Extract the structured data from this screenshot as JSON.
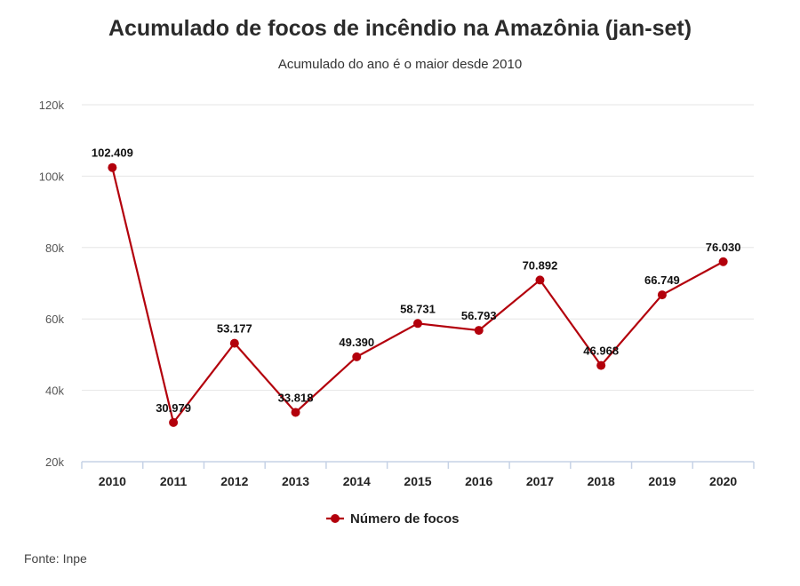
{
  "header": {
    "title": "Acumulado de focos de incêndio na Amazônia (jan-set)",
    "subtitle": "Acumulado do ano é o maior desde 2010"
  },
  "footer": {
    "source": "Fonte: Inpe"
  },
  "colors": {
    "series": "#b3000c",
    "grid": "#e6e6e6",
    "axis": "#c6d2e6"
  },
  "chart_data": {
    "type": "line",
    "title": "Acumulado de focos de incêndio na Amazônia (jan-set)",
    "subtitle": "Acumulado do ano é o maior desde 2010",
    "xlabel": "",
    "ylabel": "",
    "categories": [
      "2010",
      "2011",
      "2012",
      "2013",
      "2014",
      "2015",
      "2016",
      "2017",
      "2018",
      "2019",
      "2020"
    ],
    "series": [
      {
        "name": "Número de focos",
        "values": [
          102409,
          30979,
          53177,
          33818,
          49390,
          58731,
          56793,
          70892,
          46968,
          66749,
          76030
        ],
        "labels": [
          "102.409",
          "30.979",
          "53.177",
          "33.818",
          "49.390",
          "58.731",
          "56.793",
          "70.892",
          "46.968",
          "66.749",
          "76.030"
        ]
      }
    ],
    "ylim": [
      20000,
      120000
    ],
    "yticks": [
      20000,
      40000,
      60000,
      80000,
      100000,
      120000
    ],
    "ytick_labels": [
      "20k",
      "40k",
      "60k",
      "80k",
      "100k",
      "120k"
    ],
    "grid": true,
    "legend_position": "bottom-center"
  }
}
